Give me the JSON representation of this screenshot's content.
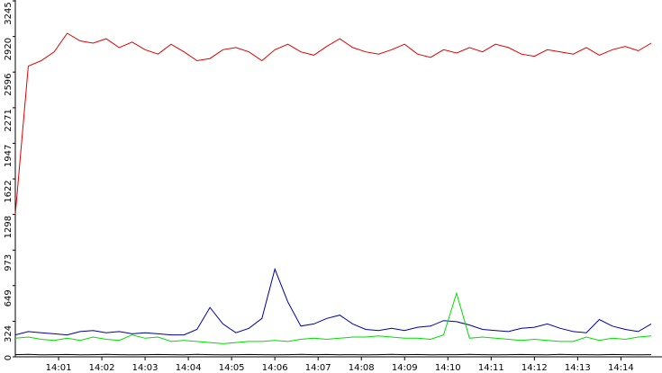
{
  "chart_data": {
    "type": "line",
    "x": [
      0,
      0.3,
      0.6,
      0.9,
      1.2,
      1.5,
      1.8,
      2.1,
      2.4,
      2.7,
      3,
      3.3,
      3.6,
      3.9,
      4.2,
      4.5,
      4.8,
      5.1,
      5.4,
      5.7,
      6,
      6.3,
      6.6,
      6.9,
      7.2,
      7.5,
      7.8,
      8.1,
      8.4,
      8.7,
      9,
      9.3,
      9.6,
      9.9,
      10.2,
      10.5,
      10.8,
      11.1,
      11.4,
      11.7,
      12,
      12.3,
      12.6,
      12.9,
      13.2,
      13.5,
      13.8,
      14.1,
      14.4,
      14.7
    ],
    "series": [
      {
        "color": "#e00000",
        "values": [
          1300,
          2650,
          2700,
          2780,
          2950,
          2880,
          2860,
          2900,
          2820,
          2870,
          2800,
          2760,
          2850,
          2780,
          2700,
          2720,
          2800,
          2820,
          2780,
          2700,
          2800,
          2850,
          2780,
          2750,
          2830,
          2900,
          2820,
          2780,
          2760,
          2800,
          2850,
          2760,
          2730,
          2800,
          2770,
          2820,
          2780,
          2850,
          2820,
          2760,
          2740,
          2800,
          2780,
          2760,
          2820,
          2750,
          2800,
          2830,
          2790,
          2860
        ]
      },
      {
        "color": "#0000a0",
        "values": [
          200,
          230,
          220,
          210,
          200,
          230,
          240,
          220,
          230,
          210,
          220,
          210,
          200,
          200,
          250,
          450,
          300,
          220,
          260,
          350,
          800,
          500,
          280,
          300,
          350,
          380,
          300,
          250,
          240,
          260,
          240,
          270,
          280,
          330,
          320,
          290,
          250,
          240,
          230,
          260,
          270,
          300,
          260,
          230,
          220,
          340,
          280,
          250,
          230,
          300
        ]
      },
      {
        "color": "#00dd00",
        "values": [
          170,
          180,
          160,
          150,
          170,
          150,
          180,
          160,
          150,
          200,
          170,
          180,
          140,
          150,
          140,
          130,
          120,
          130,
          140,
          140,
          150,
          140,
          160,
          170,
          160,
          170,
          180,
          180,
          190,
          180,
          170,
          170,
          160,
          200,
          580,
          170,
          180,
          170,
          160,
          150,
          160,
          150,
          140,
          140,
          180,
          150,
          170,
          160,
          180,
          190
        ]
      },
      {
        "color": "#000000",
        "values": [
          20,
          22,
          18,
          20,
          21,
          19,
          20,
          22,
          20,
          18,
          20,
          21,
          20,
          19,
          22,
          20,
          18,
          20,
          21,
          20,
          19,
          20,
          22,
          20,
          21,
          19,
          20,
          18,
          20,
          22,
          20,
          21,
          19,
          20,
          20,
          22,
          20,
          18,
          20,
          21,
          20,
          19,
          22,
          20,
          20,
          18,
          21,
          20,
          19,
          20
        ]
      }
    ],
    "xlim": [
      0,
      14.95
    ],
    "xticks": [
      {
        "value": 1,
        "label": "14:01"
      },
      {
        "value": 2,
        "label": "14:02"
      },
      {
        "value": 3,
        "label": "14:03"
      },
      {
        "value": 4,
        "label": "14:04"
      },
      {
        "value": 5,
        "label": "14:05"
      },
      {
        "value": 6,
        "label": "14:06"
      },
      {
        "value": 7,
        "label": "14:07"
      },
      {
        "value": 8,
        "label": "14:08"
      },
      {
        "value": 9,
        "label": "14:09"
      },
      {
        "value": 10,
        "label": "14:10"
      },
      {
        "value": 11,
        "label": "14:11"
      },
      {
        "value": 12,
        "label": "14:12"
      },
      {
        "value": 13,
        "label": "14:13"
      },
      {
        "value": 14,
        "label": "14:14"
      }
    ],
    "ylim": [
      0,
      3245
    ],
    "yticks": [
      0,
      324,
      649,
      973,
      1298,
      1622,
      1947,
      2271,
      2596,
      2920,
      3245
    ]
  }
}
